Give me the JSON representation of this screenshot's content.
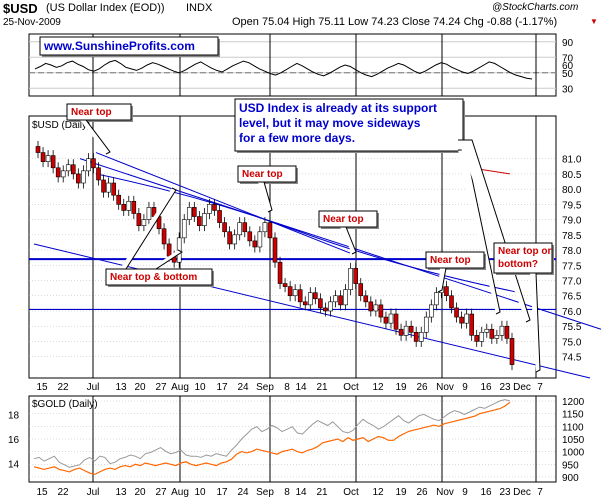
{
  "header": {
    "symbol": "$USD",
    "name": "(US Dollar Index (EOD))",
    "exchange": "INDX",
    "watermark": "@StockCharts.com",
    "date": "25-Nov-2009",
    "quote": "Open 75.04  High 75.11  Low 74.23  Close 74.24  Chg -0.88 (-1.17%)",
    "down_arrow": "▼"
  },
  "site_label": "www.SunshineProfits.com",
  "colors": {
    "candle_up": "#ffffff",
    "candle_down": "#cc0000",
    "gold_line": "#ff6600",
    "compare_line": "#999999",
    "annotation_text": "#cc0000",
    "trend_line": "#0000cc",
    "site_text": "#0000cc",
    "grid": "#bbbbbb"
  },
  "annotations": {
    "note": "USD Index is already at its support level, but it may move sideways for a few more days.",
    "note_lines": [
      "USD Index is already at its support",
      "level, but it may move sideways",
      "for a few more days."
    ],
    "near_top_1": "Near top",
    "near_top_2": "Near top",
    "near_top_3": "Near top",
    "near_top_4": "Near top",
    "near_top_bottom": "Near top & bottom",
    "near_top_or_bottom_lines": [
      "Near top or",
      "bottom?"
    ]
  },
  "chart_data": [
    {
      "type": "line",
      "panel": "oscillator",
      "y_ticks": [
        30,
        50,
        70,
        90
      ],
      "y_ticks_extra": [
        50,
        60
      ],
      "ylim": [
        20,
        100
      ],
      "values": [
        55,
        58,
        62,
        60,
        57,
        59,
        63,
        65,
        61,
        58,
        54,
        52,
        55,
        60,
        64,
        66,
        62,
        57,
        55,
        53,
        56,
        60,
        63,
        61,
        58,
        55,
        52,
        50,
        53,
        57,
        61,
        64,
        60,
        56,
        53,
        51,
        55,
        59,
        62,
        65,
        63,
        59,
        55,
        52,
        49,
        47,
        50,
        54,
        58,
        62,
        59,
        55,
        51,
        48,
        46,
        49,
        53,
        57,
        60,
        58,
        54,
        50,
        47,
        45,
        48,
        52,
        56,
        59,
        62,
        60,
        56,
        52,
        49,
        52,
        56,
        60,
        63,
        61,
        57,
        54,
        51,
        49,
        52,
        56,
        60,
        64,
        62,
        58,
        54,
        50,
        47,
        45,
        43,
        42
      ]
    },
    {
      "type": "candlestick",
      "panel": "price",
      "title": "$USD (Daily)",
      "y_ticks": [
        74.5,
        75.0,
        75.5,
        76.0,
        76.5,
        77.0,
        77.5,
        78.0,
        78.5,
        79.0,
        79.5,
        80.0,
        80.5,
        81.0
      ],
      "ylim": [
        73.8,
        82.4
      ],
      "x_ticks": [
        "15",
        "22",
        "Jul",
        "13",
        "20",
        "27",
        "Aug",
        "10",
        "17",
        "24",
        "Sep",
        "8",
        "14",
        "21",
        "Oct",
        "12",
        "19",
        "26",
        "Nov",
        "9",
        "16",
        "23",
        "Dec",
        "7"
      ],
      "close": [
        81.2,
        80.9,
        81.1,
        80.7,
        80.4,
        80.6,
        80.8,
        80.5,
        80.2,
        80.6,
        81.0,
        80.7,
        80.3,
        79.9,
        80.2,
        79.8,
        79.5,
        79.3,
        79.6,
        79.2,
        78.8,
        79.0,
        79.4,
        79.1,
        78.7,
        78.2,
        77.8,
        77.6,
        78.4,
        79.0,
        79.4,
        79.1,
        78.8,
        79.2,
        79.5,
        79.3,
        78.9,
        78.6,
        78.2,
        78.5,
        78.9,
        78.6,
        78.3,
        78.1,
        78.6,
        78.9,
        78.4,
        77.6,
        76.9,
        76.8,
        76.5,
        76.7,
        76.3,
        76.2,
        76.6,
        76.4,
        76.1,
        76.0,
        76.3,
        76.5,
        76.2,
        76.7,
        77.4,
        76.9,
        76.5,
        76.3,
        76.0,
        76.2,
        75.8,
        75.6,
        75.9,
        75.4,
        75.2,
        75.5,
        75.3,
        75.0,
        75.3,
        75.8,
        76.2,
        76.6,
        76.8,
        76.5,
        76.1,
        75.8,
        75.6,
        75.9,
        75.2,
        75.0,
        75.3,
        75.4,
        75.1,
        75.2,
        75.5,
        75.1,
        74.24
      ],
      "series": [
        {
          "name": "$USD",
          "type": "candlestick"
        },
        {
          "name": "MA",
          "type": "line",
          "values": [
            80.3,
            80.0,
            79.5
          ]
        }
      ]
    },
    {
      "type": "line",
      "panel": "comparison",
      "title": "$GOLD (Daily)",
      "y_ticks_right": [
        900,
        950,
        1000,
        1050,
        1100,
        1150,
        1200
      ],
      "y_ticks_left": [
        14,
        16,
        18
      ],
      "ylim_right": [
        880,
        1220
      ],
      "ylim_left": [
        12.5,
        19.5
      ],
      "x_ticks": [
        "15",
        "22",
        "Jul",
        "13",
        "20",
        "27",
        "Aug",
        "10",
        "17",
        "24",
        "Sep",
        "8",
        "14",
        "21",
        "Oct",
        "12",
        "19",
        "26",
        "Nov",
        "9",
        "16",
        "23",
        "Dec",
        "7"
      ],
      "series": [
        {
          "name": "$GOLD",
          "values": [
            940,
            935,
            930,
            935,
            940,
            930,
            925,
            920,
            930,
            935,
            925,
            915,
            910,
            920,
            930,
            935,
            930,
            940,
            945,
            940,
            950,
            945,
            955,
            950,
            945,
            950,
            955,
            950,
            945,
            955,
            960,
            950,
            945,
            950,
            955,
            950,
            945,
            955,
            960,
            970,
            990,
            1000,
            995,
            1000,
            1010,
            1005,
            1000,
            995,
            990,
            1000,
            1005,
            1010,
            1000,
            995,
            1005,
            1010,
            1020,
            1035,
            1040,
            1045,
            1050,
            1040,
            1055,
            1045,
            1050,
            1055,
            1040,
            1050,
            1060,
            1055,
            1045,
            1045,
            1060,
            1070,
            1080,
            1085,
            1090,
            1095,
            1100,
            1105,
            1100,
            1110,
            1115,
            1120,
            1125,
            1130,
            1135,
            1140,
            1150,
            1155,
            1160,
            1165,
            1170,
            1180,
            1195
          ]
        },
        {
          "name": "Comparison",
          "values": [
            14.4,
            14.5,
            14.2,
            14.4,
            14.6,
            14.1,
            13.9,
            13.7,
            13.8,
            13.9,
            14.3,
            14.5,
            14.2,
            14.6,
            14.5,
            14.0,
            14.1,
            14.4,
            14.5,
            14.7,
            14.6,
            14.4,
            14.8,
            14.9,
            15.1,
            15.3,
            15.0,
            14.8,
            14.9,
            15.1,
            14.7,
            14.6,
            14.6,
            14.5,
            14.7,
            14.6,
            14.8,
            14.7,
            14.6,
            15.1,
            15.5,
            16.0,
            16.4,
            16.8,
            17.0,
            16.6,
            16.8,
            17.1,
            16.9,
            16.6,
            16.8,
            17.0,
            16.5,
            16.4,
            16.8,
            17.2,
            17.5,
            17.3,
            17.1,
            17.4,
            17.0,
            16.6,
            16.5,
            16.7,
            17.2,
            17.6,
            17.3,
            17.1,
            16.8,
            17.0,
            17.3,
            17.6,
            17.9,
            17.5,
            17.3,
            17.6,
            17.9,
            18.0,
            17.8,
            17.6,
            17.5,
            17.8,
            18.1,
            18.3,
            18.2,
            18.0,
            18.2,
            18.4,
            18.6,
            18.5,
            18.7,
            18.9,
            19.1,
            19.2,
            19.1
          ]
        }
      ]
    }
  ]
}
